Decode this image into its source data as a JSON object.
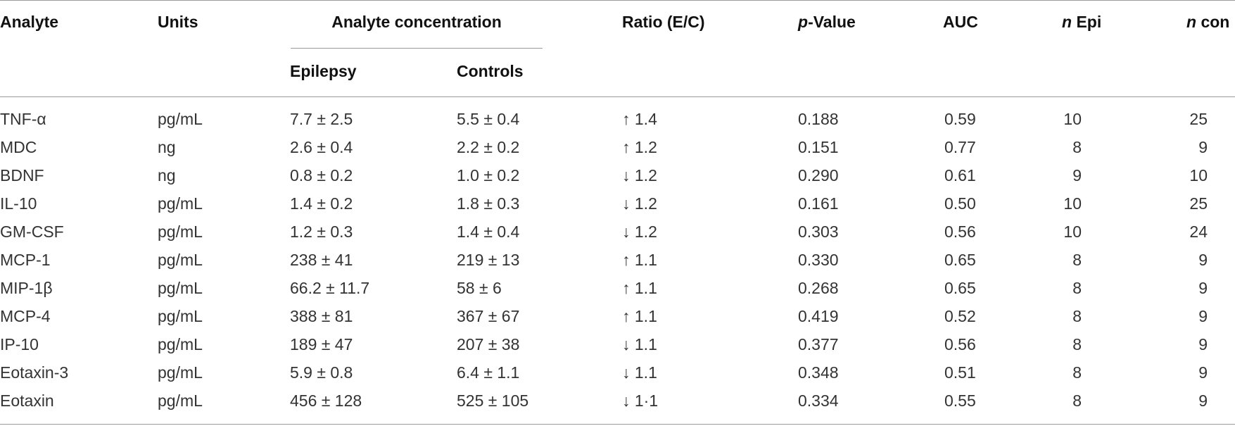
{
  "columns": {
    "analyte": "Analyte",
    "units": "Units",
    "concentration_group": "Analyte concentration",
    "epilepsy": "Epilepsy",
    "controls": "Controls",
    "ratio": "Ratio (E/C)",
    "p_value_italic": "p",
    "p_value_rest": "-Value",
    "auc": "AUC",
    "n_epi_italic": "n",
    "n_epi_rest": " Epi",
    "n_con_italic": "n",
    "n_con_rest": " con"
  },
  "rows": [
    {
      "analyte": "TNF-α",
      "units": "pg/mL",
      "epilepsy": "7.7 ± 2.5",
      "controls": "5.5 ± 0.4",
      "ratio": "↑ 1.4",
      "p": "0.188",
      "auc": "0.59",
      "n_epi": "10",
      "n_con": "25"
    },
    {
      "analyte": "MDC",
      "units": "ng",
      "epilepsy": "2.6 ± 0.4",
      "controls": "2.2 ± 0.2",
      "ratio": "↑ 1.2",
      "p": "0.151",
      "auc": "0.77",
      "n_epi": "8",
      "n_con": "9"
    },
    {
      "analyte": "BDNF",
      "units": "ng",
      "epilepsy": "0.8 ± 0.2",
      "controls": "1.0 ± 0.2",
      "ratio": "↓ 1.2",
      "p": "0.290",
      "auc": "0.61",
      "n_epi": "9",
      "n_con": "10"
    },
    {
      "analyte": "IL-10",
      "units": "pg/mL",
      "epilepsy": "1.4 ± 0.2",
      "controls": "1.8 ± 0.3",
      "ratio": "↓ 1.2",
      "p": "0.161",
      "auc": "0.50",
      "n_epi": "10",
      "n_con": "25"
    },
    {
      "analyte": "GM-CSF",
      "units": "pg/mL",
      "epilepsy": "1.2 ± 0.3",
      "controls": "1.4 ± 0.4",
      "ratio": "↓ 1.2",
      "p": "0.303",
      "auc": "0.56",
      "n_epi": "10",
      "n_con": "24"
    },
    {
      "analyte": "MCP-1",
      "units": "pg/mL",
      "epilepsy": "238 ± 41",
      "controls": "219 ± 13",
      "ratio": "↑ 1.1",
      "p": "0.330",
      "auc": "0.65",
      "n_epi": "8",
      "n_con": "9"
    },
    {
      "analyte": "MIP-1β",
      "units": "pg/mL",
      "epilepsy": "66.2 ± 11.7",
      "controls": "58 ± 6",
      "ratio": "↑ 1.1",
      "p": "0.268",
      "auc": "0.65",
      "n_epi": "8",
      "n_con": "9"
    },
    {
      "analyte": "MCP-4",
      "units": "pg/mL",
      "epilepsy": "388 ± 81",
      "controls": "367 ± 67",
      "ratio": "↑ 1.1",
      "p": "0.419",
      "auc": "0.52",
      "n_epi": "8",
      "n_con": "9"
    },
    {
      "analyte": "IP-10",
      "units": "pg/mL",
      "epilepsy": "189 ± 47",
      "controls": "207 ± 38",
      "ratio": "↓ 1.1",
      "p": "0.377",
      "auc": "0.56",
      "n_epi": "8",
      "n_con": "9"
    },
    {
      "analyte": "Eotaxin-3",
      "units": "pg/mL",
      "epilepsy": "5.9 ± 0.8",
      "controls": "6.4 ± 1.1",
      "ratio": "↓ 1.1",
      "p": "0.348",
      "auc": "0.51",
      "n_epi": "8",
      "n_con": "9"
    },
    {
      "analyte": "Eotaxin",
      "units": "pg/mL",
      "epilepsy": "456 ± 128",
      "controls": "525 ± 105",
      "ratio": "↓ 1·1",
      "p": "0.334",
      "auc": "0.55",
      "n_epi": "8",
      "n_con": "9"
    }
  ]
}
